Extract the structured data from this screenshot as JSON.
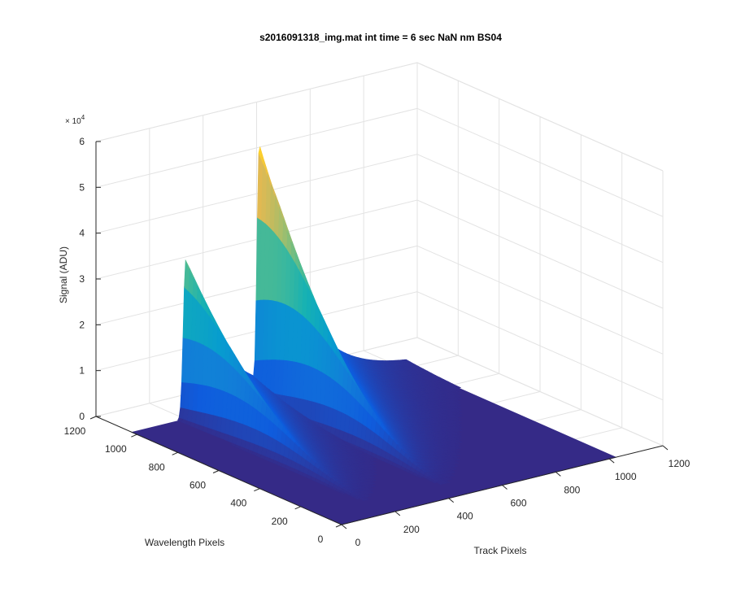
{
  "chart_data": {
    "type": "surface",
    "title": "s2016091318_img.mat int time = 6 sec  NaN nm BS04",
    "xlabel": "Track Pixels",
    "ylabel": "Wavelength Pixels",
    "zlabel": "Signal (ADU)",
    "z_exponent_label": "× 10",
    "z_exponent_power": "4",
    "x_ticks": [
      "0",
      "200",
      "400",
      "600",
      "800",
      "1000",
      "1200"
    ],
    "y_ticks": [
      "0",
      "200",
      "400",
      "600",
      "800",
      "1000",
      "1200"
    ],
    "z_ticks": [
      "0",
      "1",
      "2",
      "3",
      "4",
      "5",
      "6"
    ],
    "xlim": [
      0,
      1200
    ],
    "ylim": [
      0,
      1200
    ],
    "zlim": [
      0,
      60000
    ],
    "surface_extent": {
      "x": [
        0,
        1024
      ],
      "y": [
        0,
        1024
      ]
    },
    "grid": true,
    "colormap": "parula",
    "colors": {
      "floor": "#352a87",
      "peak": "#f9fb0e"
    },
    "series": [
      {
        "peak_track_pixel": 200,
        "peak_signal": 33000,
        "peak_wavelength_pixel": 1000
      },
      {
        "peak_track_pixel": 475,
        "peak_signal": 53500,
        "peak_wavelength_pixel": 1000
      }
    ]
  }
}
